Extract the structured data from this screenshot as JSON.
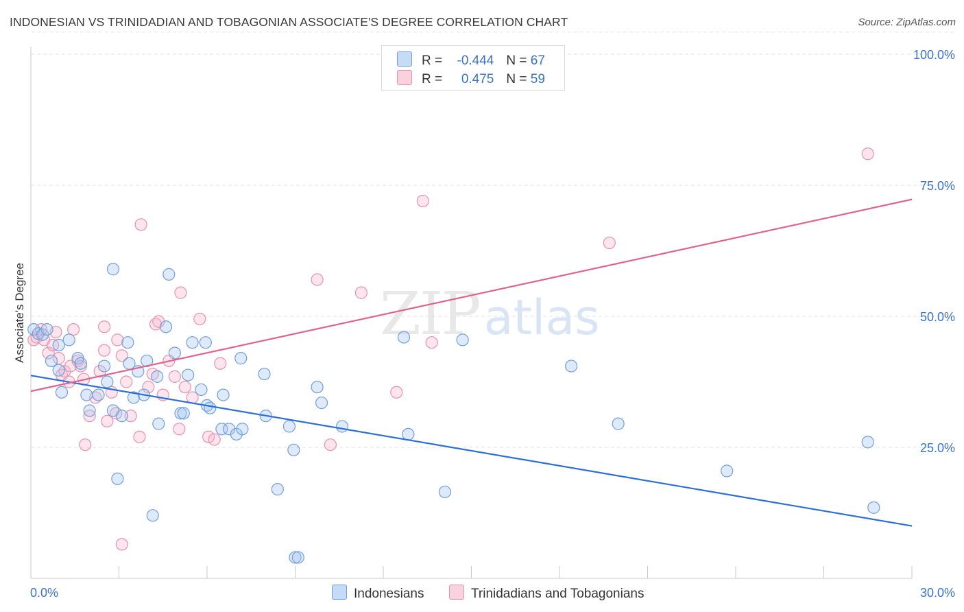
{
  "title": "INDONESIAN VS TRINIDADIAN AND TOBAGONIAN ASSOCIATE'S DEGREE CORRELATION CHART",
  "source": "Source: ZipAtlas.com",
  "watermark": {
    "zip": "ZIP",
    "atlas": "atlas"
  },
  "legend": {
    "rows": [
      {
        "r_label": "R = ",
        "r_value": "-0.444",
        "n_label": "N = ",
        "n_value": "67",
        "color": "#a8c8f0"
      },
      {
        "r_label": "R = ",
        "r_value": "0.475",
        "n_label": "N = ",
        "n_value": "59",
        "color": "#f5b8cb"
      }
    ]
  },
  "bottom_legend": [
    "Indonesians",
    "Trinidadians and Tobagonians"
  ],
  "colors": {
    "blue_fill": "rgba(160,195,240,0.35)",
    "blue_stroke": "#6f9fdc",
    "blue_line": "#2b6fd6",
    "pink_fill": "rgba(245,180,200,0.35)",
    "pink_stroke": "#e891ae",
    "pink_line": "#e0628f",
    "tick_label": "#3a72c8"
  },
  "chart_data": {
    "type": "scatter",
    "title": "INDONESIAN VS TRINIDADIAN AND TOBAGONIAN ASSOCIATE'S DEGREE CORRELATION CHART",
    "xlabel": "",
    "ylabel": "Associate's Degree",
    "xlim": [
      0,
      30
    ],
    "ylim": [
      0,
      105
    ],
    "x_tick_labels": [
      "0.0%",
      "30.0%"
    ],
    "y_ticks": [
      25,
      50,
      75,
      100
    ],
    "y_tick_labels": [
      "25.0%",
      "50.0%",
      "75.0%",
      "100.0%"
    ],
    "grid": true,
    "legend_placement": "top-center",
    "series": [
      {
        "name": "Indonesians",
        "R": -0.444,
        "N": 67,
        "trend": {
          "x": [
            0,
            30
          ],
          "y": [
            38.7,
            10.0
          ]
        },
        "points": [
          [
            0.1,
            47.5
          ],
          [
            0.25,
            46.7
          ],
          [
            0.4,
            46.5
          ],
          [
            0.55,
            47.5
          ],
          [
            0.7,
            41.5
          ],
          [
            0.95,
            44.5
          ],
          [
            1.05,
            35.5
          ],
          [
            0.95,
            39.7
          ],
          [
            1.3,
            45.5
          ],
          [
            1.6,
            42.0
          ],
          [
            1.7,
            41.0
          ],
          [
            1.9,
            35.0
          ],
          [
            2.0,
            32.0
          ],
          [
            2.3,
            35.0
          ],
          [
            2.5,
            40.5
          ],
          [
            2.6,
            37.5
          ],
          [
            2.8,
            32.0
          ],
          [
            2.8,
            59.0
          ],
          [
            2.95,
            19.0
          ],
          [
            3.1,
            31.0
          ],
          [
            3.3,
            45.0
          ],
          [
            3.35,
            41.0
          ],
          [
            3.5,
            34.5
          ],
          [
            3.65,
            39.5
          ],
          [
            3.85,
            35.0
          ],
          [
            3.95,
            41.5
          ],
          [
            4.15,
            12.0
          ],
          [
            4.3,
            38.5
          ],
          [
            4.35,
            29.5
          ],
          [
            4.6,
            48.0
          ],
          [
            4.7,
            58.0
          ],
          [
            4.9,
            43.0
          ],
          [
            5.1,
            31.5
          ],
          [
            5.2,
            31.5
          ],
          [
            5.35,
            38.8
          ],
          [
            5.5,
            45.0
          ],
          [
            5.8,
            36.0
          ],
          [
            5.95,
            45.0
          ],
          [
            6.0,
            33.0
          ],
          [
            6.1,
            32.5
          ],
          [
            6.5,
            28.5
          ],
          [
            6.55,
            35.0
          ],
          [
            6.75,
            28.5
          ],
          [
            7.0,
            27.5
          ],
          [
            7.15,
            42.0
          ],
          [
            7.2,
            28.5
          ],
          [
            7.95,
            39.0
          ],
          [
            8.0,
            31.0
          ],
          [
            8.4,
            17.0
          ],
          [
            8.8,
            29.0
          ],
          [
            8.95,
            24.5
          ],
          [
            9.0,
            4.0
          ],
          [
            9.1,
            4.0
          ],
          [
            9.75,
            36.5
          ],
          [
            9.9,
            33.5
          ],
          [
            10.6,
            29.0
          ],
          [
            12.7,
            46.0
          ],
          [
            12.85,
            27.5
          ],
          [
            14.1,
            16.5
          ],
          [
            14.7,
            45.5
          ],
          [
            18.4,
            40.5
          ],
          [
            20.0,
            29.5
          ],
          [
            23.7,
            20.5
          ],
          [
            28.5,
            26.0
          ],
          [
            28.7,
            13.5
          ]
        ]
      },
      {
        "name": "Trinidadians and Tobagonians",
        "R": 0.475,
        "N": 59,
        "trend": {
          "x": [
            0,
            30
          ],
          "y": [
            35.7,
            72.3
          ]
        },
        "points": [
          [
            0.1,
            45.5
          ],
          [
            0.2,
            46.0
          ],
          [
            0.35,
            47.5
          ],
          [
            0.45,
            45.5
          ],
          [
            0.6,
            43.0
          ],
          [
            0.75,
            44.5
          ],
          [
            0.85,
            47.0
          ],
          [
            0.95,
            42.0
          ],
          [
            1.05,
            38.8
          ],
          [
            1.15,
            39.5
          ],
          [
            1.3,
            37.5
          ],
          [
            1.35,
            40.5
          ],
          [
            1.45,
            47.5
          ],
          [
            1.6,
            41.5
          ],
          [
            1.7,
            40.5
          ],
          [
            1.8,
            38.0
          ],
          [
            1.85,
            25.5
          ],
          [
            2.0,
            31.0
          ],
          [
            2.2,
            34.5
          ],
          [
            2.35,
            39.5
          ],
          [
            2.5,
            43.5
          ],
          [
            2.5,
            48.0
          ],
          [
            2.6,
            30.0
          ],
          [
            2.75,
            35.5
          ],
          [
            2.9,
            31.5
          ],
          [
            2.95,
            45.5
          ],
          [
            3.1,
            42.5
          ],
          [
            3.1,
            6.5
          ],
          [
            3.25,
            37.5
          ],
          [
            3.4,
            31.0
          ],
          [
            3.7,
            27.0
          ],
          [
            3.75,
            67.5
          ],
          [
            4.0,
            36.5
          ],
          [
            4.15,
            39.0
          ],
          [
            4.25,
            48.5
          ],
          [
            4.35,
            49.0
          ],
          [
            4.5,
            35.0
          ],
          [
            4.7,
            41.5
          ],
          [
            4.9,
            38.5
          ],
          [
            5.05,
            28.5
          ],
          [
            5.1,
            54.5
          ],
          [
            5.25,
            36.5
          ],
          [
            5.5,
            34.5
          ],
          [
            5.75,
            49.5
          ],
          [
            6.05,
            27.0
          ],
          [
            6.25,
            26.5
          ],
          [
            6.45,
            41.0
          ],
          [
            9.75,
            57.0
          ],
          [
            10.2,
            25.5
          ],
          [
            11.25,
            54.5
          ],
          [
            12.45,
            35.5
          ],
          [
            13.35,
            72.0
          ],
          [
            13.65,
            45.0
          ],
          [
            19.7,
            64.0
          ],
          [
            28.5,
            81.0
          ]
        ]
      }
    ]
  }
}
